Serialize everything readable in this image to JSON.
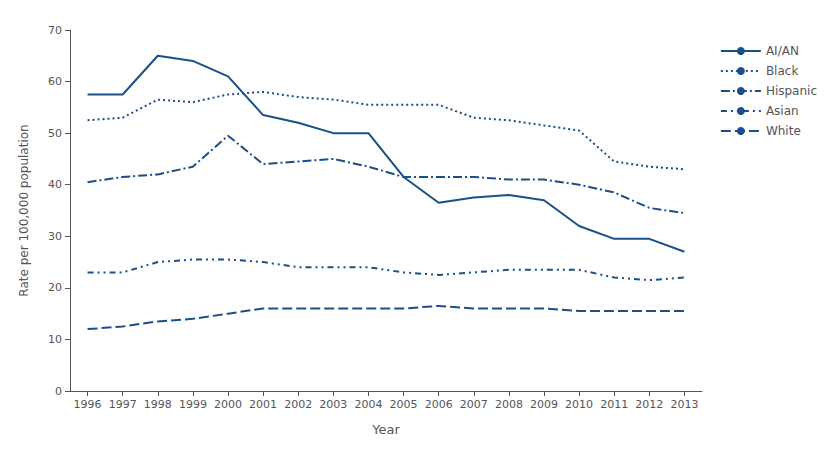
{
  "chart_data": {
    "type": "line",
    "x": [
      1996,
      1997,
      1998,
      1999,
      2000,
      2001,
      2002,
      2003,
      2004,
      2005,
      2006,
      2007,
      2008,
      2009,
      2010,
      2011,
      2012,
      2013
    ],
    "series": [
      {
        "name": "AI/AN",
        "color": "#1a4f8a",
        "line_style": "solid",
        "values": [
          57.5,
          57.5,
          65.0,
          64.0,
          61.0,
          53.5,
          52.0,
          50.0,
          50.0,
          41.5,
          36.5,
          37.5,
          38.0,
          37.0,
          32.0,
          29.5,
          29.5,
          27.0
        ]
      },
      {
        "name": "Black",
        "color": "#1a4f8a",
        "line_style": "dotted",
        "values": [
          52.5,
          53.0,
          56.5,
          56.0,
          57.5,
          58.0,
          57.0,
          56.5,
          55.5,
          55.5,
          55.5,
          53.0,
          52.5,
          51.5,
          50.5,
          44.5,
          43.5,
          43.0
        ]
      },
      {
        "name": "Hispanic",
        "color": "#1a4f8a",
        "line_style": "dashdot",
        "values": [
          40.5,
          41.5,
          42.0,
          43.5,
          49.5,
          44.0,
          44.5,
          45.0,
          43.5,
          41.5,
          41.5,
          41.5,
          41.0,
          41.0,
          40.0,
          38.5,
          35.5,
          34.5
        ]
      },
      {
        "name": "Asian",
        "color": "#1a4f8a",
        "line_style": "dashdotdot",
        "values": [
          23.0,
          23.0,
          25.0,
          25.5,
          25.5,
          25.0,
          24.0,
          24.0,
          24.0,
          23.0,
          22.5,
          23.0,
          23.5,
          23.5,
          23.5,
          22.0,
          21.5,
          22.0
        ]
      },
      {
        "name": "White",
        "color": "#1a4f8a",
        "line_style": "dashed",
        "values": [
          12.0,
          12.5,
          13.5,
          14.0,
          15.0,
          16.0,
          16.0,
          16.0,
          16.0,
          16.0,
          16.5,
          16.0,
          16.0,
          16.0,
          15.5,
          15.5,
          15.5,
          15.5
        ]
      }
    ],
    "xlabel": "Year",
    "ylabel": "Rate per 100,000 population",
    "xlim": [
      1995.5,
      2013.5
    ],
    "xticks": [
      1996,
      1997,
      1998,
      1999,
      2000,
      2001,
      2002,
      2003,
      2004,
      2005,
      2006,
      2007,
      2008,
      2009,
      2010,
      2011,
      2012,
      2013
    ],
    "ylim": [
      0,
      70
    ],
    "yticks": [
      0,
      10,
      20,
      30,
      40,
      50,
      60,
      70
    ],
    "grid": false,
    "legend": "upper right"
  }
}
